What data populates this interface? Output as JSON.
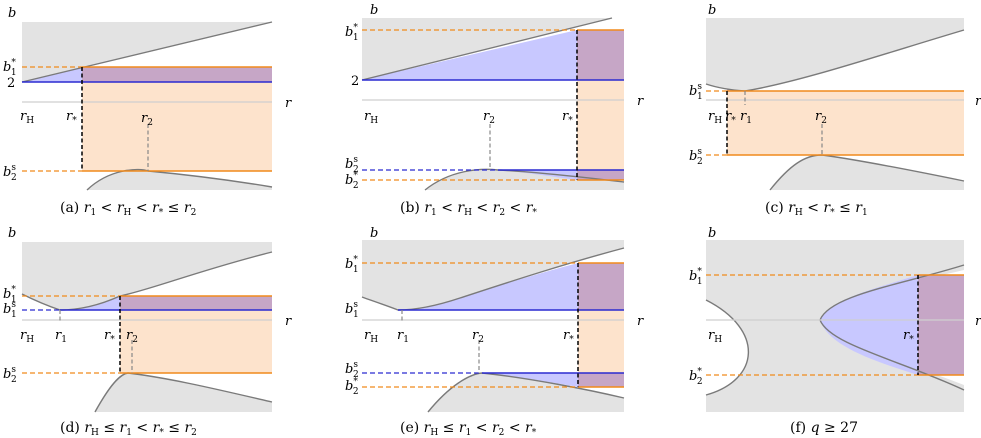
{
  "axis": {
    "b": "b",
    "r": "r"
  },
  "labels": {
    "rH": "H",
    "r1": "1",
    "r2": "2",
    "rs": "*",
    "b1": "s",
    "b1star": "*",
    "b2": "s",
    "b2star": "*",
    "two": "2"
  },
  "captions": {
    "a": [
      "(a) ",
      "r",
      "1",
      " < ",
      "r",
      "H",
      " < ",
      "r",
      "*",
      " ≤ ",
      "r",
      "2"
    ],
    "b": [
      "(b) ",
      "r",
      "1",
      " < ",
      "r",
      "H",
      " < ",
      "r",
      "2",
      " < ",
      "r",
      "*"
    ],
    "c": [
      "(c) ",
      "r",
      "H",
      " < ",
      "r",
      "*",
      " ≤ ",
      "r",
      "1"
    ],
    "d": [
      "(d) ",
      "r",
      "H",
      " ≤ ",
      "r",
      "1",
      " < ",
      "r",
      "*",
      " ≤ ",
      "r",
      "2"
    ],
    "e": [
      "(e) ",
      "r",
      "H",
      " ≤ ",
      "r",
      "1",
      " < ",
      "r",
      "2",
      " < ",
      "r",
      "*"
    ],
    "f": [
      "(f) ",
      "q",
      "",
      " ≥ 27"
    ]
  },
  "caption_text": {
    "a": "(a) r1 < rH < r* ≤ r2",
    "b": "(b) r1 < rH < r2 < r*",
    "c": "(c) rH < r* ≤ r1",
    "d": "(d) rH ≤ r1 < r* ≤ r2",
    "e": "(e) rH ≤ r1 < r2 < r*",
    "f": "(f) q ≥ 27"
  }
}
